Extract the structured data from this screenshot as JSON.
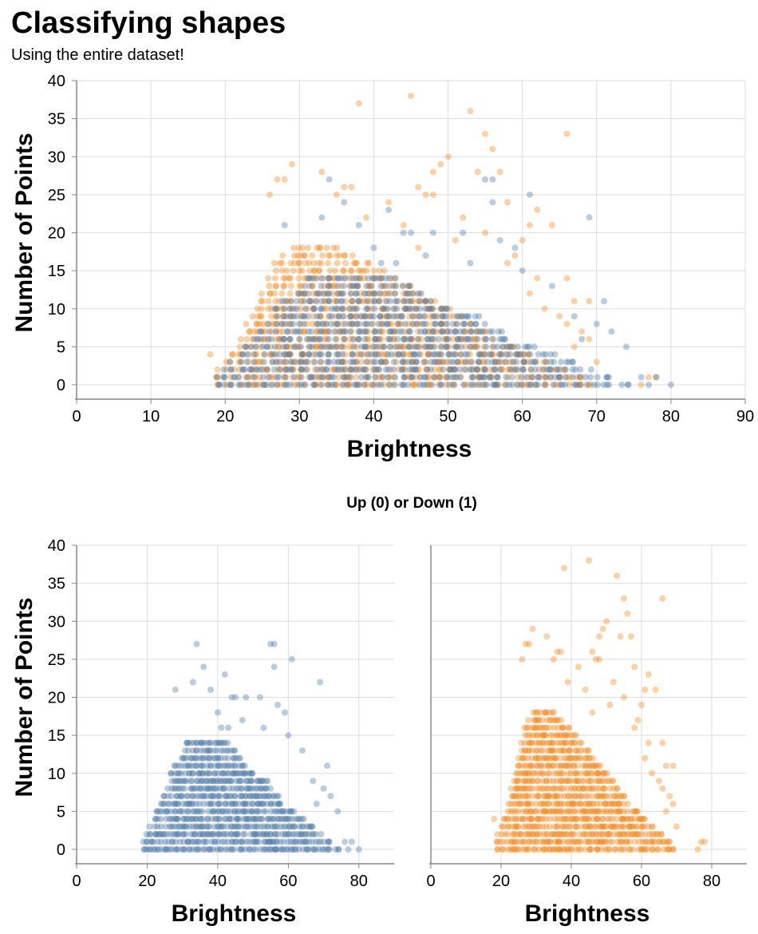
{
  "title": "Classifying shapes",
  "subtitle": "Using the entire dataset!",
  "facet_title": "Up (0) or Down (1)",
  "colors": {
    "up": "#4c78a8",
    "down": "#f58518",
    "grid": "#dddddd",
    "axis": "#888888"
  },
  "chart_data": [
    {
      "id": "combined",
      "type": "scatter",
      "xlabel": "Brightness",
      "ylabel": "Number of Points",
      "xlim": [
        0,
        90
      ],
      "ylim": [
        0,
        40
      ],
      "xticks": [
        0,
        10,
        20,
        30,
        40,
        50,
        60,
        70,
        80,
        90
      ],
      "yticks": [
        0,
        5,
        10,
        15,
        20,
        25,
        30,
        35,
        40
      ],
      "grid": true,
      "series": [
        "up",
        "down"
      ]
    },
    {
      "id": "facet-up",
      "type": "scatter",
      "xlabel": "Brightness",
      "ylabel": "Number of Points",
      "xlim": [
        0,
        90
      ],
      "ylim": [
        0,
        40
      ],
      "xticks": [
        0,
        20,
        40,
        60,
        80
      ],
      "yticks": [
        0,
        5,
        10,
        15,
        20,
        25,
        30,
        35,
        40
      ],
      "grid": true,
      "series": [
        "up"
      ]
    },
    {
      "id": "facet-down",
      "type": "scatter",
      "xlabel": "Brightness",
      "ylabel": "",
      "xlim": [
        0,
        90
      ],
      "ylim": [
        0,
        40
      ],
      "xticks": [
        0,
        20,
        40,
        60,
        80
      ],
      "yticks": [],
      "grid": true,
      "series": [
        "down"
      ]
    }
  ],
  "series_data": {
    "up": {
      "label": "0",
      "x_range": [
        19,
        80
      ],
      "dense_bands": [
        {
          "y": 0,
          "x": [
            19,
            74
          ]
        },
        {
          "y": 1,
          "x": [
            19,
            72
          ]
        },
        {
          "y": 2,
          "x": [
            20,
            69
          ]
        },
        {
          "y": 3,
          "x": [
            21,
            67
          ]
        },
        {
          "y": 4,
          "x": [
            22,
            64
          ]
        },
        {
          "y": 5,
          "x": [
            23,
            62
          ]
        },
        {
          "y": 6,
          "x": [
            24,
            58
          ]
        },
        {
          "y": 7,
          "x": [
            25,
            57
          ]
        },
        {
          "y": 8,
          "x": [
            26,
            55
          ]
        },
        {
          "y": 9,
          "x": [
            27,
            54
          ]
        },
        {
          "y": 10,
          "x": [
            27,
            50
          ]
        },
        {
          "y": 11,
          "x": [
            28,
            48
          ]
        },
        {
          "y": 12,
          "x": [
            30,
            46
          ]
        },
        {
          "y": 13,
          "x": [
            31,
            45
          ]
        },
        {
          "y": 14,
          "x": [
            31,
            43
          ]
        }
      ],
      "outliers": [
        [
          34,
          27
        ],
        [
          55,
          27
        ],
        [
          56,
          27
        ],
        [
          61,
          25
        ],
        [
          36,
          24
        ],
        [
          56,
          24
        ],
        [
          42,
          23
        ],
        [
          33,
          22
        ],
        [
          69,
          22
        ],
        [
          28,
          21
        ],
        [
          38,
          21
        ],
        [
          44,
          20
        ],
        [
          45,
          20
        ],
        [
          48,
          20
        ],
        [
          52,
          20
        ],
        [
          57,
          19
        ],
        [
          40,
          18
        ],
        [
          59,
          18
        ],
        [
          47,
          17
        ],
        [
          41,
          16
        ],
        [
          43,
          16
        ],
        [
          53,
          16
        ],
        [
          60,
          15
        ],
        [
          64,
          13
        ],
        [
          71,
          11
        ],
        [
          67,
          9
        ],
        [
          70,
          8
        ],
        [
          72,
          7
        ],
        [
          68,
          6
        ],
        [
          74,
          5
        ],
        [
          78,
          1
        ],
        [
          80,
          0
        ],
        [
          77,
          0
        ],
        [
          76,
          1
        ]
      ]
    },
    "down": {
      "label": "1",
      "x_range": [
        18,
        78
      ],
      "dense_bands": [
        {
          "y": 0,
          "x": [
            19,
            69
          ]
        },
        {
          "y": 1,
          "x": [
            19,
            68
          ]
        },
        {
          "y": 2,
          "x": [
            19,
            66
          ]
        },
        {
          "y": 3,
          "x": [
            20,
            63
          ]
        },
        {
          "y": 4,
          "x": [
            21,
            61
          ]
        },
        {
          "y": 5,
          "x": [
            22,
            59
          ]
        },
        {
          "y": 6,
          "x": [
            22,
            56
          ]
        },
        {
          "y": 7,
          "x": [
            23,
            55
          ]
        },
        {
          "y": 8,
          "x": [
            23,
            53
          ]
        },
        {
          "y": 9,
          "x": [
            24,
            52
          ]
        },
        {
          "y": 10,
          "x": [
            24,
            50
          ]
        },
        {
          "y": 11,
          "x": [
            25,
            48
          ]
        },
        {
          "y": 12,
          "x": [
            25,
            46
          ]
        },
        {
          "y": 13,
          "x": [
            26,
            45
          ]
        },
        {
          "y": 14,
          "x": [
            26,
            43
          ]
        },
        {
          "y": 15,
          "x": [
            27,
            41
          ]
        },
        {
          "y": 16,
          "x": [
            27,
            39
          ]
        },
        {
          "y": 17,
          "x": [
            28,
            37
          ]
        },
        {
          "y": 18,
          "x": [
            29,
            35
          ]
        }
      ],
      "outliers": [
        [
          38,
          37
        ],
        [
          45,
          38
        ],
        [
          53,
          36
        ],
        [
          55,
          33
        ],
        [
          66,
          33
        ],
        [
          56,
          31
        ],
        [
          50,
          30
        ],
        [
          49,
          29
        ],
        [
          29,
          29
        ],
        [
          33,
          28
        ],
        [
          48,
          28
        ],
        [
          54,
          28
        ],
        [
          57,
          28
        ],
        [
          27,
          27
        ],
        [
          28,
          27
        ],
        [
          37,
          26
        ],
        [
          46,
          26
        ],
        [
          36,
          26
        ],
        [
          26,
          25
        ],
        [
          35,
          25
        ],
        [
          47,
          25
        ],
        [
          48,
          25
        ],
        [
          58,
          24
        ],
        [
          42,
          24
        ],
        [
          62,
          23
        ],
        [
          39,
          22
        ],
        [
          52,
          22
        ],
        [
          61,
          21
        ],
        [
          64,
          21
        ],
        [
          44,
          21
        ],
        [
          55,
          20
        ],
        [
          60,
          19
        ],
        [
          51,
          19
        ],
        [
          46,
          18
        ],
        [
          59,
          17
        ],
        [
          62,
          14
        ],
        [
          58,
          16
        ],
        [
          66,
          14
        ],
        [
          61,
          12
        ],
        [
          67,
          11
        ],
        [
          69,
          11
        ],
        [
          63,
          10
        ],
        [
          65,
          9
        ],
        [
          66,
          8
        ],
        [
          68,
          7
        ],
        [
          69,
          6
        ],
        [
          67,
          5
        ],
        [
          70,
          3
        ],
        [
          77,
          1
        ],
        [
          78,
          1
        ],
        [
          76,
          0
        ],
        [
          18,
          4
        ]
      ]
    }
  }
}
